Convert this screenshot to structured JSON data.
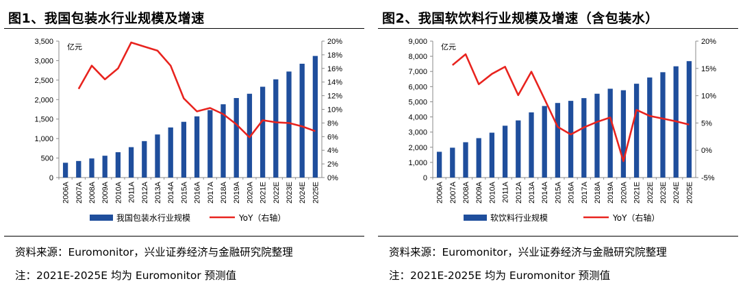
{
  "figures": [
    {
      "title": "图1、我国包装水行业规模及增速",
      "source": "资料来源：Euromonitor，兴业证券经济与金融研究院整理",
      "note": "注：2021E-2025E 均为 Euromonitor 预测值"
    },
    {
      "title": "图2、我国软饮料行业规模及增速（含包装水）",
      "source": "资料来源：Euromonitor，兴业证券经济与金融研究院整理",
      "note": "注：2021E-2025E 均为 Euromonitor 预测值"
    }
  ],
  "colors": {
    "bar": "#1f4e9c",
    "line": "#e8231e"
  },
  "chart_data": [
    {
      "type": "bar",
      "categories": [
        "2006A",
        "2007A",
        "2008A",
        "2009A",
        "2010A",
        "2011A",
        "2012A",
        "2013A",
        "2014A",
        "2015A",
        "2016A",
        "2017A",
        "2018A",
        "2019A",
        "2020A",
        "2021E",
        "2022E",
        "2023E",
        "2024E",
        "2025E"
      ],
      "unit_label": "亿元",
      "left_axis": {
        "min": 0,
        "max": 3500,
        "step": 500,
        "tick_labels": [
          "0",
          "500",
          "1,000",
          "1,500",
          "2,000",
          "2,500",
          "3,000",
          "3,500"
        ]
      },
      "right_axis": {
        "min": 0,
        "max": 20,
        "step": 2,
        "tick_labels": [
          "0%",
          "2%",
          "4%",
          "6%",
          "8%",
          "10%",
          "12%",
          "14%",
          "16%",
          "18%",
          "20%"
        ]
      },
      "series": [
        {
          "name": "我国包装水行业规模",
          "type": "bar",
          "axis": "left",
          "values": [
            380,
            425,
            490,
            560,
            650,
            780,
            935,
            1105,
            1285,
            1430,
            1570,
            1730,
            1880,
            2040,
            2150,
            2330,
            2520,
            2720,
            2920,
            3120
          ]
        },
        {
          "name": "YoY（右轴）",
          "type": "line",
          "axis": "right",
          "x": [
            "2007A",
            "2008A",
            "2009A",
            "2010A",
            "2011A",
            "2012A",
            "2013A",
            "2014A",
            "2015A",
            "2016A",
            "2017A",
            "2018A",
            "2019A",
            "2020A",
            "2021E",
            "2022E",
            "2023E",
            "2024E",
            "2025E"
          ],
          "values": [
            13.0,
            16.4,
            14.4,
            16.0,
            19.8,
            19.2,
            18.6,
            16.4,
            11.6,
            9.7,
            10.2,
            9.3,
            7.8,
            5.9,
            8.4,
            8.1,
            8.0,
            7.5,
            6.8
          ]
        }
      ]
    },
    {
      "type": "bar",
      "categories": [
        "2006A",
        "2007A",
        "2008A",
        "2009A",
        "2010A",
        "2011A",
        "2012A",
        "2013A",
        "2014A",
        "2015A",
        "2016A",
        "2017A",
        "2018A",
        "2019A",
        "2020A",
        "2021E",
        "2022E",
        "2023E",
        "2024E",
        "2025E"
      ],
      "unit_label": "亿元",
      "left_axis": {
        "min": 0,
        "max": 9000,
        "step": 1000,
        "tick_labels": [
          "0",
          "1,000",
          "2,000",
          "3,000",
          "4,000",
          "5,000",
          "6,000",
          "7,000",
          "8,000",
          "9,000"
        ]
      },
      "right_axis": {
        "min": -5,
        "max": 20,
        "step": 5,
        "tick_labels": [
          "-5%",
          "0%",
          "5%",
          "10%",
          "15%",
          "20%"
        ]
      },
      "series": [
        {
          "name": "软饮料行业规模",
          "type": "bar",
          "axis": "left",
          "values": [
            1700,
            1970,
            2330,
            2600,
            2960,
            3420,
            3770,
            4300,
            4720,
            4920,
            5060,
            5240,
            5530,
            5860,
            5760,
            6190,
            6600,
            6950,
            7340,
            7680
          ]
        },
        {
          "name": "YoY（右轴）",
          "type": "line",
          "axis": "right",
          "x": [
            "2007A",
            "2008A",
            "2009A",
            "2010A",
            "2011A",
            "2012A",
            "2013A",
            "2014A",
            "2015A",
            "2016A",
            "2017A",
            "2018A",
            "2019A",
            "2020A",
            "2021E",
            "2022E",
            "2023E",
            "2024E",
            "2025E"
          ],
          "values": [
            15.6,
            17.6,
            12.1,
            14.0,
            15.3,
            10.1,
            14.4,
            9.4,
            4.3,
            2.9,
            4.2,
            5.2,
            6.0,
            -2.0,
            7.4,
            6.3,
            5.8,
            5.3,
            4.7
          ]
        }
      ]
    }
  ]
}
